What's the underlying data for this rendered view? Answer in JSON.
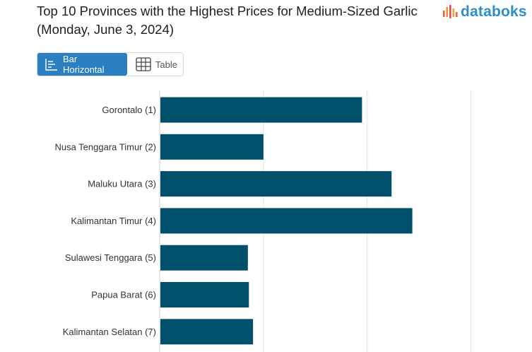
{
  "header": {
    "title": "Top 10 Provinces with the Highest Prices for Medium-Sized Garlic (Monday, June 3, 2024)",
    "logo_text": "databoks",
    "brand_color": "#2d8fc7"
  },
  "view_toggle": {
    "active_label": "Bar Horizontal",
    "inactive_label": "Table",
    "active_color": "#2a7fc1"
  },
  "chart_data": {
    "type": "bar",
    "orientation": "horizontal",
    "categories": [
      "Gorontalo (1)",
      "Nusa Tenggara Timur (2)",
      "Maluku Utara (3)",
      "Kalimantan Timur (4)",
      "Sulawesi Tenggara (5)",
      "Papua Barat (6)",
      "Kalimantan Selatan (7)"
    ],
    "values": [
      39000,
      20000,
      44700,
      48700,
      17000,
      17200,
      18000
    ],
    "xlim": [
      0,
      70000
    ],
    "grid_step": 20000,
    "grid": true,
    "bar_color": "#004f6b",
    "title": "",
    "xlabel": "",
    "ylabel": ""
  }
}
